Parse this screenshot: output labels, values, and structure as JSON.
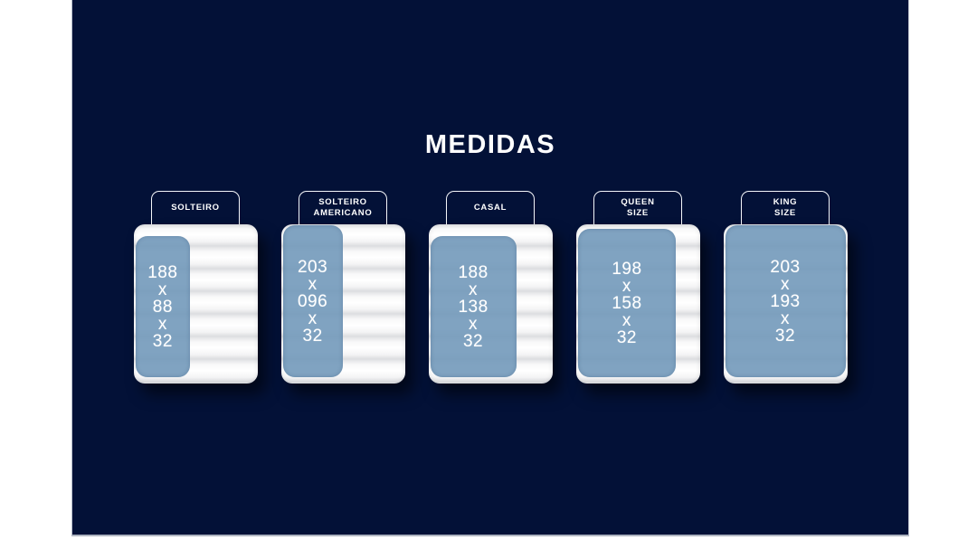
{
  "page": {
    "background_color": "#ffffff",
    "canvas_color": "#031137",
    "overlay_color": "#7299ba",
    "text_color": "#ffffff"
  },
  "title": "MEDIDAS",
  "mattresses": [
    {
      "label": "SOLTEIRO",
      "dims_display": "188\nx\n88\nx\n32",
      "length_cm": 188,
      "width_cm": 88,
      "height_cm": 32
    },
    {
      "label": "SOLTEIRO\nAMERICANO",
      "dims_display": "203\nx\n096\nx\n32",
      "length_cm": 203,
      "width_cm": 96,
      "height_cm": 32
    },
    {
      "label": "CASAL",
      "dims_display": "188\nx\n138\nx\n32",
      "length_cm": 188,
      "width_cm": 138,
      "height_cm": 32
    },
    {
      "label": "QUEEN\nSIZE",
      "dims_display": "198\nx\n158\nx\n32",
      "length_cm": 198,
      "width_cm": 158,
      "height_cm": 32
    },
    {
      "label": "KING\nSIZE",
      "dims_display": "203\nx\n193\nx\n32",
      "length_cm": 203,
      "width_cm": 193,
      "height_cm": 32
    }
  ]
}
